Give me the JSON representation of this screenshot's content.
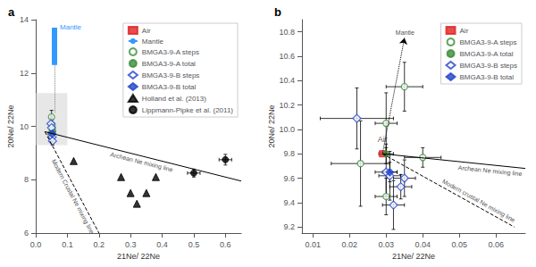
{
  "chart_data": [
    {
      "type": "scatter",
      "panel_label": "a",
      "x_label": "21Ne/ 22Ne",
      "y_label": "20Ne/ 22Ne",
      "xlim": [
        0,
        0.65
      ],
      "ylim": [
        6,
        14
      ],
      "xticks": [
        {
          "value": 0,
          "label": "0.0"
        },
        0.1,
        0.2,
        0.3,
        0.4,
        0.5,
        0.6
      ],
      "yticks": [
        6,
        8,
        10,
        12,
        14
      ],
      "grid": false,
      "legend": "upper right",
      "shaded_area": {
        "x": [
          0.0,
          0.1
        ],
        "y": [
          9.3,
          11.25
        ],
        "color": "#d0d0d0"
      },
      "lines": [
        {
          "label": "Archean Ne mixing line",
          "x": [
            0.029,
            0.65
          ],
          "y": [
            9.8,
            7.95
          ],
          "line_style": "solid",
          "color": "#000000"
        },
        {
          "label": "Modern Crustal Ne mixing line",
          "x": [
            0.029,
            0.2
          ],
          "y": [
            9.8,
            6.0
          ],
          "line_style": "dashed",
          "color": "#000000"
        },
        {
          "x": [
            0.0594,
            0.0594
          ],
          "y": [
            12.3,
            10.5
          ],
          "line_style": "dotted",
          "color": "#808080"
        }
      ],
      "series": [
        {
          "name": "Air",
          "color": "#e02020",
          "marker": "square",
          "x": [],
          "y": []
        },
        {
          "name": "Mantle",
          "color": "#3399ff",
          "marker": "bar",
          "x": [
            0.0594
          ],
          "y_low": [
            12.3
          ],
          "y_high": [
            13.7
          ],
          "point_labels": [
            "Mantle"
          ]
        },
        {
          "name": "BMGA3-9-A steps",
          "color": "#3a8c3a",
          "marker": "open_circle",
          "x": [
            0.05,
            0.052,
            0.053,
            0.048
          ],
          "y": [
            10.35,
            10.05,
            9.85,
            9.72
          ],
          "xerr": [
            0.003,
            0.003,
            0.003,
            0.003
          ],
          "yerr": [
            0.25,
            0.2,
            0.15,
            0.15
          ]
        },
        {
          "name": "BMGA3-9-A total",
          "color": "#3a8c3a",
          "marker": "circle",
          "x": [
            0.053
          ],
          "y": [
            9.8
          ],
          "xerr": [
            0.002
          ],
          "yerr": [
            0.1
          ]
        },
        {
          "name": "BMGA3-9-B steps",
          "color": "#2244cc",
          "marker": "open_diamond",
          "x": [
            0.048,
            0.05,
            0.052,
            0.053
          ],
          "y": [
            10.1,
            9.95,
            9.6,
            9.45
          ],
          "xerr": [
            0.003,
            0.003,
            0.003,
            0.003
          ],
          "yerr": [
            0.2,
            0.2,
            0.15,
            0.15
          ]
        },
        {
          "name": "BMGA3-9-B total",
          "color": "#2244cc",
          "marker": "diamond",
          "x": [
            0.052
          ],
          "y": [
            9.72
          ],
          "xerr": [
            0.002
          ],
          "yerr": [
            0.1
          ]
        },
        {
          "name": "Holland et al. (2013)",
          "color": "#000000",
          "marker": "triangle",
          "x": [
            0.12,
            0.27,
            0.3,
            0.32,
            0.35,
            0.38
          ],
          "y": [
            8.7,
            8.1,
            7.5,
            7.1,
            7.5,
            8.1
          ]
        },
        {
          "name": "Lippmann-Pipke et al. (2011)",
          "color": "#000000",
          "marker": "circle",
          "x": [
            0.5,
            0.6
          ],
          "y": [
            8.25,
            8.75
          ],
          "xerr": [
            0.02,
            0.02
          ],
          "yerr": [
            0.15,
            0.2
          ]
        }
      ]
    },
    {
      "type": "scatter",
      "panel_label": "b",
      "x_label": "21Ne/ 22Ne",
      "y_label": "20Ne/ 22Ne",
      "xlim": [
        0.007,
        0.068
      ],
      "ylim": [
        9.15,
        10.9
      ],
      "xticks": [
        0.01,
        0.02,
        0.03,
        0.04,
        0.05,
        0.06
      ],
      "yticks": [
        9.2,
        9.4,
        9.6,
        9.8,
        {
          "value": 10,
          "label": "10.0"
        },
        10.2,
        10.4,
        10.6,
        10.8
      ],
      "grid": false,
      "legend": "upper right",
      "lines": [
        {
          "label": "Archean Ne mixing line",
          "x": [
            0.029,
            0.068
          ],
          "y": [
            9.8,
            9.68
          ],
          "line_style": "solid",
          "color": "#000000"
        },
        {
          "label": "Modern crustal Ne mixing line",
          "x": [
            0.029,
            0.065
          ],
          "y": [
            9.8,
            9.2
          ],
          "line_style": "dashed",
          "color": "#000000"
        },
        {
          "label": "Mantle",
          "x": [
            0.035,
            0.029
          ],
          "y": [
            10.75,
            9.8
          ],
          "line_style": "dotted",
          "marker": "arrow",
          "color": "#000000"
        }
      ],
      "series": [
        {
          "name": "Air",
          "color": "#e02020",
          "marker": "square",
          "x": [
            0.029
          ],
          "y": [
            9.8
          ],
          "point_labels": [
            "Air"
          ]
        },
        {
          "name": "BMGA3-9-A steps",
          "color": "#3a8c3a",
          "marker": "open_circle",
          "x": [
            0.023,
            0.03,
            0.03,
            0.035,
            0.04
          ],
          "y": [
            9.72,
            10.05,
            9.45,
            10.35,
            9.77
          ],
          "xerr": [
            0.008,
            0.003,
            0.003,
            0.005,
            0.005
          ],
          "yerr": [
            0.35,
            0.25,
            0.15,
            0.2,
            0.08
          ]
        },
        {
          "name": "BMGA3-9-A total",
          "color": "#3a8c3a",
          "marker": "circle",
          "x": [
            0.03
          ],
          "y": [
            9.8
          ],
          "xerr": [
            0.002
          ],
          "yerr": [
            0.08
          ]
        },
        {
          "name": "BMGA3-9-B steps",
          "color": "#2244cc",
          "marker": "open_diamond",
          "x": [
            0.022,
            0.03,
            0.031,
            0.032,
            0.034,
            0.035
          ],
          "y": [
            10.09,
            9.65,
            9.62,
            9.38,
            9.53,
            9.6
          ],
          "xerr": [
            0.01,
            0.003,
            0.003,
            0.003,
            0.003,
            0.003
          ],
          "yerr": [
            0.25,
            0.2,
            0.2,
            0.2,
            0.1,
            0.15
          ]
        },
        {
          "name": "BMGA3-9-B total",
          "color": "#2244cc",
          "marker": "diamond",
          "x": [
            0.031
          ],
          "y": [
            9.65
          ],
          "xerr": [
            0.002
          ],
          "yerr": [
            0.08
          ]
        }
      ]
    }
  ]
}
